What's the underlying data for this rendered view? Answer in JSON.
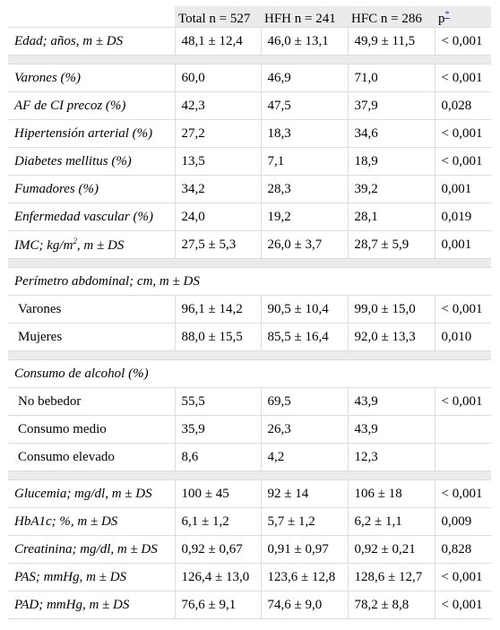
{
  "header": {
    "total": "Total n = 527",
    "hfh": "HFH n = 241",
    "hfc": "HFC n = 286",
    "p": "p",
    "p_note": "*"
  },
  "rows": {
    "edad": {
      "label": "Edad; años, m ± DS",
      "total": "48,1 ± 12,4",
      "hfh": "46,0 ± 13,1",
      "hfc": "49,9 ± 11,5",
      "p": "< 0,001"
    },
    "varones": {
      "label": "Varones (%)",
      "total": "60,0",
      "hfh": "46,9",
      "hfc": "71,0",
      "p": "< 0,001"
    },
    "af": {
      "label": "AF de CI precoz (%)",
      "total": "42,3",
      "hfh": "47,5",
      "hfc": "37,9",
      "p": "0,028"
    },
    "hta": {
      "label": "Hipertensión arterial (%)",
      "total": "27,2",
      "hfh": "18,3",
      "hfc": "34,6",
      "p": "< 0,001"
    },
    "dm": {
      "label": "Diabetes mellitus (%)",
      "total": "13,5",
      "hfh": "7,1",
      "hfc": "18,9",
      "p": "< 0,001"
    },
    "fum": {
      "label": "Fumadores (%)",
      "total": "34,2",
      "hfh": "28,3",
      "hfc": "39,2",
      "p": "0,001"
    },
    "ev": {
      "label": "Enfermedad vascular (%)",
      "total": "24,0",
      "hfh": "19,2",
      "hfc": "28,1",
      "p": "0,019"
    },
    "imc": {
      "label_pre": "IMC; kg/m",
      "label_sup": "2",
      "label_post": ", m ± DS",
      "total": "27,5 ± 5,3",
      "hfh": "26,0 ± 3,7",
      "hfc": "28,7 ± 5,9",
      "p": "0,001"
    },
    "perimetro": {
      "label": "Perímetro abdominal; cm, m ± DS"
    },
    "per_var": {
      "label": "Varones",
      "total": "96,1 ± 14,2",
      "hfh": "90,5 ± 10,4",
      "hfc": "99,0 ± 15,0",
      "p": "< 0,001"
    },
    "per_muj": {
      "label": "Mujeres",
      "total": "88,0 ± 15,5",
      "hfh": "85,5 ± 16,4",
      "hfc": "92,0 ± 13,3",
      "p": "0,010"
    },
    "alcohol": {
      "label": "Consumo de alcohol (%)"
    },
    "no_beb": {
      "label": "No bebedor",
      "total": "55,5",
      "hfh": "69,5",
      "hfc": "43,9",
      "p": "< 0,001"
    },
    "medio": {
      "label": "Consumo medio",
      "total": "35,9",
      "hfh": "26,3",
      "hfc": "43,9",
      "p": ""
    },
    "elevado": {
      "label": "Consumo elevado",
      "total": "8,6",
      "hfh": "4,2",
      "hfc": "12,3",
      "p": ""
    },
    "gluc": {
      "label": "Glucemia; mg/dl, m ± DS",
      "total": "100 ± 45",
      "hfh": "92 ± 14",
      "hfc": "106 ± 18",
      "p": "< 0,001"
    },
    "hba1c": {
      "label": "HbA1c; %, m ± DS",
      "total": "6,1 ± 1,2",
      "hfh": "5,7 ± 1,2",
      "hfc": "6,2 ± 1,1",
      "p": "0,009"
    },
    "creat": {
      "label": "Creatinina; mg/dl, m ± DS",
      "total": "0,92 ± 0,67",
      "hfh": "0,91 ± 0,97",
      "hfc": "0,92 ± 0,21",
      "p": "0,828"
    },
    "pas": {
      "label": "PAS; mmHg, m ± DS",
      "total": "126,4 ± 13,0",
      "hfh": "123,6 ± 12,8",
      "hfc": "128,6 ± 12,7",
      "p": "< 0,001"
    },
    "pad": {
      "label": "PAD; mmHg, m ± DS",
      "total": "76,6 ± 9,1",
      "hfh": "74,6 ± 9,0",
      "hfc": "78,2 ± 8,8",
      "p": "< 0,001"
    }
  }
}
